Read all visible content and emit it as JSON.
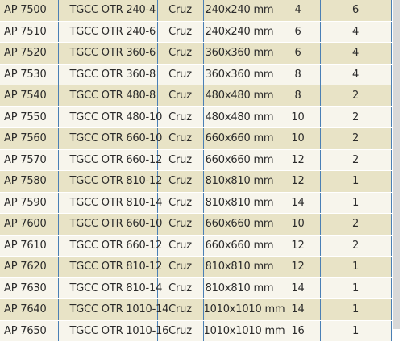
{
  "table": {
    "rows": [
      [
        "AP 7500",
        "TGCC OTR 240-4",
        "Cruz",
        "240x240 mm",
        "4",
        "6"
      ],
      [
        "AP 7510",
        "TGCC OTR 240-6",
        "Cruz",
        "240x240 mm",
        "6",
        "4"
      ],
      [
        "AP 7520",
        "TGCC OTR 360-6",
        "Cruz",
        "360x360 mm",
        "6",
        "4"
      ],
      [
        "AP 7530",
        "TGCC OTR 360-8",
        "Cruz",
        "360x360 mm",
        "8",
        "4"
      ],
      [
        "AP 7540",
        "TGCC OTR 480-8",
        "Cruz",
        "480x480 mm",
        "8",
        "2"
      ],
      [
        "AP 7550",
        "TGCC OTR 480-10",
        "Cruz",
        "480x480 mm",
        "10",
        "2"
      ],
      [
        "AP 7560",
        "TGCC OTR 660-10",
        "Cruz",
        "660x660 mm",
        "10",
        "2"
      ],
      [
        "AP 7570",
        "TGCC OTR 660-12",
        "Cruz",
        "660x660 mm",
        "12",
        "2"
      ],
      [
        "AP 7580",
        "TGCC OTR 810-12",
        "Cruz",
        "810x810 mm",
        "12",
        "1"
      ],
      [
        "AP 7590",
        "TGCC OTR 810-14",
        "Cruz",
        "810x810 mm",
        "14",
        "1"
      ],
      [
        "AP 7600",
        "TGCC OTR 660-10",
        "Cruz",
        "660x660 mm",
        "10",
        "2"
      ],
      [
        "AP 7610",
        "TGCC OTR 660-12",
        "Cruz",
        "660x660 mm",
        "12",
        "2"
      ],
      [
        "AP 7620",
        "TGCC OTR 810-12",
        "Cruz",
        "810x810 mm",
        "12",
        "1"
      ],
      [
        "AP 7630",
        "TGCC OTR 810-14",
        "Cruz",
        "810x810 mm",
        "14",
        "1"
      ],
      [
        "AP 7640",
        "TGCC OTR 1010-14",
        "Cruz",
        "1010x1010 mm",
        "14",
        "1"
      ],
      [
        "AP 7650",
        "TGCC OTR 1010-16",
        "Cruz",
        "1010x1010 mm",
        "16",
        "1"
      ]
    ]
  },
  "colors": {
    "row_dark": "#e8e3c6",
    "row_light": "#f7f5ec",
    "column_divider": "#4a7fb5"
  }
}
